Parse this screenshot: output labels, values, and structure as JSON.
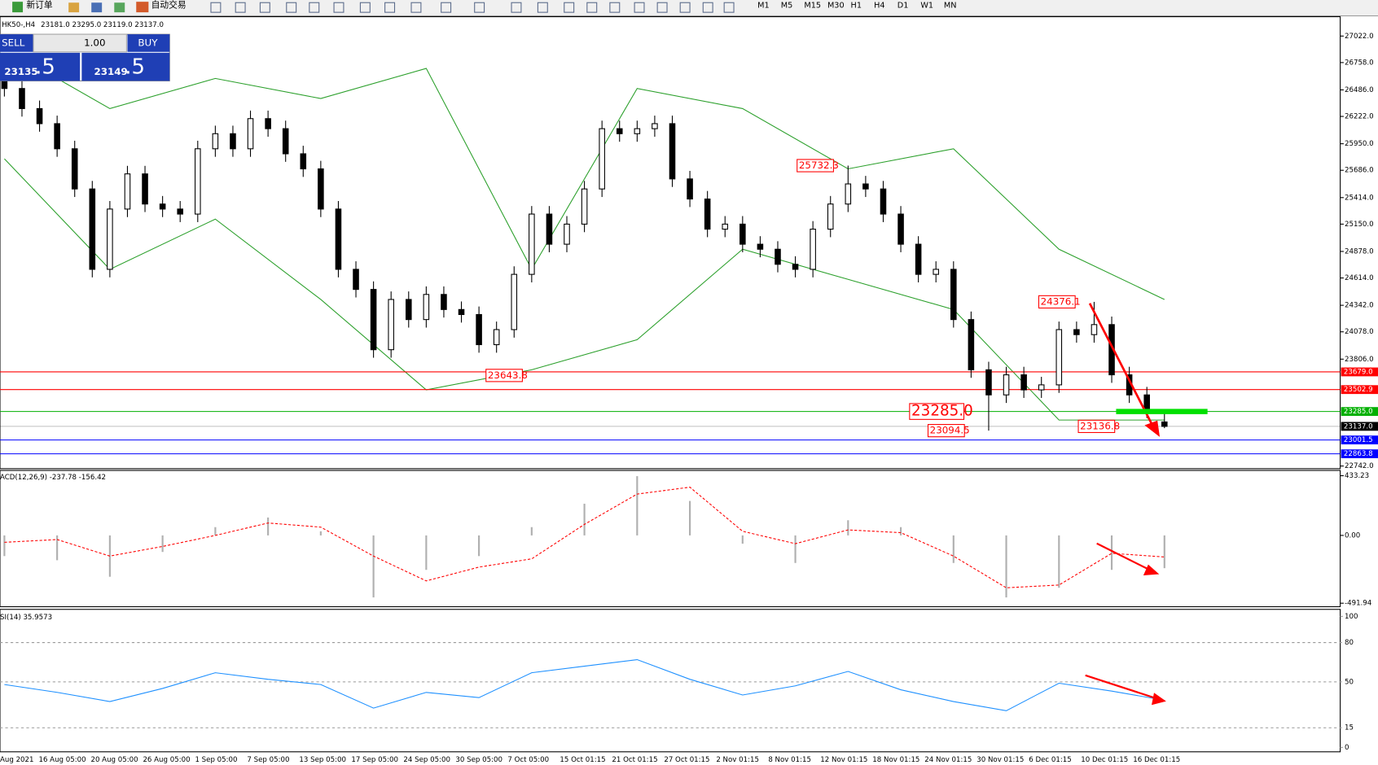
{
  "toolbar": {
    "new_order": "新订单",
    "auto_trading": "自动交易",
    "timeframes": [
      "M1",
      "M5",
      "M15",
      "M30",
      "H1",
      "H4",
      "D1",
      "W1",
      "MN"
    ]
  },
  "chart_header": {
    "symbol": "HK50-,H4",
    "open": "23181.0",
    "high": "23295.0",
    "low": "23119.0",
    "close": "23137.0"
  },
  "one_click": {
    "sell": "SELL",
    "volume": "1.00",
    "buy": "BUY",
    "bid_main": "23135",
    "bid_frac": ".5",
    "ask_main": "23149",
    "ask_frac": ".5"
  },
  "chart_data": {
    "type": "candlestick",
    "open": [
      26600,
      26500,
      26300,
      26150,
      25900,
      25500,
      24700,
      25300,
      25650,
      25350,
      25300,
      25250,
      25900,
      26050,
      25900,
      26200,
      26100,
      25850,
      25700,
      25300,
      24700,
      24500,
      23900,
      24400,
      24200,
      24450,
      24300,
      24250,
      23950,
      24100,
      24650,
      25250,
      24950,
      25150,
      25500,
      26100,
      26050,
      26100,
      26150,
      25600,
      25400,
      25100,
      25150,
      24950,
      24900,
      24750,
      24700,
      25100,
      25350,
      25550,
      25500,
      25250,
      24950,
      24650,
      24700,
      24200,
      23700,
      23450,
      23650,
      23500,
      23550,
      24100,
      24050,
      24150,
      23650,
      23450,
      23181
    ],
    "high": [
      26680,
      26580,
      26380,
      26230,
      25980,
      25580,
      25380,
      25730,
      25730,
      25430,
      25380,
      25980,
      26130,
      26130,
      26280,
      26280,
      26180,
      25930,
      25780,
      25380,
      24780,
      24580,
      24480,
      24480,
      24530,
      24530,
      24380,
      24330,
      24180,
      24730,
      25330,
      25330,
      25230,
      25580,
      26180,
      26180,
      26180,
      26230,
      26230,
      25680,
      25480,
      25230,
      25230,
      25030,
      24980,
      24830,
      25180,
      25430,
      25732.3,
      25630,
      25580,
      25330,
      25030,
      24780,
      24780,
      24280,
      23780,
      23730,
      23730,
      23630,
      24180,
      24180,
      24376.1,
      24230,
      23730,
      23530,
      23295
    ],
    "low": [
      26420,
      26220,
      26070,
      25820,
      25420,
      24620,
      24620,
      25220,
      25270,
      25220,
      25170,
      25170,
      25820,
      25820,
      25820,
      26020,
      25770,
      25620,
      25220,
      24620,
      24420,
      23820,
      23820,
      24120,
      24120,
      24220,
      24170,
      23870,
      23870,
      24020,
      24570,
      24870,
      24870,
      25070,
      25420,
      25970,
      25970,
      26020,
      25520,
      25320,
      25020,
      25020,
      24870,
      24820,
      24670,
      24620,
      24620,
      25020,
      25270,
      25420,
      25170,
      24870,
      24570,
      24570,
      24120,
      23620,
      23094.5,
      23370,
      23420,
      23420,
      23470,
      23970,
      23970,
      23570,
      23370,
      23220,
      23119
    ],
    "close": [
      26500,
      26300,
      26150,
      25900,
      25500,
      24700,
      25300,
      25650,
      25350,
      25300,
      25250,
      25900,
      26050,
      25900,
      26200,
      26100,
      25850,
      25700,
      25300,
      24700,
      24500,
      23900,
      24400,
      24200,
      24450,
      24300,
      24250,
      23950,
      24100,
      24650,
      25250,
      24950,
      25150,
      25500,
      26100,
      26050,
      26100,
      26150,
      25600,
      25400,
      25100,
      25150,
      24950,
      24900,
      24750,
      24700,
      25100,
      25350,
      25550,
      25500,
      25250,
      24950,
      24650,
      24700,
      24200,
      23700,
      23450,
      23650,
      23500,
      23550,
      24100,
      24050,
      24150,
      23650,
      23450,
      23300,
      23137
    ],
    "yticks": [
      {
        "value": 27022,
        "label": "27022.0"
      },
      {
        "value": 26758,
        "label": "26758.0"
      },
      {
        "value": 26486,
        "label": "26486.0"
      },
      {
        "value": 26222,
        "label": "26222.0"
      },
      {
        "value": 25950,
        "label": "25950.0"
      },
      {
        "value": 25686,
        "label": "25686.0"
      },
      {
        "value": 25414,
        "label": "25414.0"
      },
      {
        "value": 25150,
        "label": "25150.0"
      },
      {
        "value": 24878,
        "label": "24878.0"
      },
      {
        "value": 24614,
        "label": "24614.0"
      },
      {
        "value": 24342,
        "label": "24342.0"
      },
      {
        "value": 24078,
        "label": "24078.0"
      },
      {
        "value": 23806,
        "label": "23806.0"
      },
      {
        "value": 22742,
        "label": "22742.0"
      }
    ],
    "bands": {
      "color": "#2ca02c",
      "x": [
        0,
        6,
        12,
        18,
        24,
        30,
        36,
        42,
        48,
        54,
        60,
        66
      ],
      "upper": [
        26900,
        26300,
        26600,
        26400,
        26700,
        24700,
        26500,
        26300,
        25700,
        25900,
        24900,
        24400
      ],
      "lower": [
        25800,
        24700,
        25200,
        24400,
        23500,
        23700,
        24000,
        24900,
        24600,
        24300,
        23200,
        23200
      ]
    },
    "levels": [
      {
        "value": 23679.0,
        "label": "23679.0",
        "color": "#ff0000"
      },
      {
        "value": 23502.9,
        "label": "23502.9",
        "color": "#ff0000"
      },
      {
        "value": 23285.0,
        "label": "23285.0",
        "color": "#00b000"
      },
      {
        "value": 23137.0,
        "label": "23137.0",
        "color": "#000000"
      },
      {
        "value": 23001.5,
        "label": "23001.5",
        "color": "#0000ff"
      },
      {
        "value": 22863.8,
        "label": "22863.8",
        "color": "#0000ff"
      }
    ],
    "annotations": [
      {
        "value": 23643.8,
        "label": "23643.8"
      },
      {
        "value": 25732.3,
        "label": "25732.3"
      },
      {
        "value": 24376.1,
        "label": "24376.1"
      },
      {
        "value": 23285.0,
        "label": "23285.0"
      },
      {
        "value": 23094.5,
        "label": "23094.5"
      },
      {
        "value": 23136.8,
        "label": "23136.8"
      }
    ],
    "x_labels": [
      "Aug 2021",
      "16 Aug 05:00",
      "20 Aug 05:00",
      "26 Aug 05:00",
      "1 Sep 05:00",
      "7 Sep 05:00",
      "13 Sep 05:00",
      "17 Sep 05:00",
      "24 Sep 05:00",
      "30 Sep 05:00",
      "7 Oct 05:00",
      "15 Oct 01:15",
      "21 Oct 01:15",
      "27 Oct 01:15",
      "2 Nov 01:15",
      "8 Nov 01:15",
      "12 Nov 01:15",
      "18 Nov 01:15",
      "24 Nov 01:15",
      "30 Nov 01:15",
      "6 Dec 01:15",
      "10 Dec 01:15",
      "16 Dec 01:15"
    ]
  },
  "macd": {
    "label": "ACD(12,26,9) -237.78 -156.42",
    "x": [
      0,
      3,
      6,
      9,
      12,
      15,
      18,
      21,
      24,
      27,
      30,
      33,
      36,
      39,
      42,
      45,
      48,
      51,
      54,
      57,
      60,
      63,
      66
    ],
    "histogram": [
      -150,
      -180,
      -300,
      -120,
      60,
      130,
      30,
      -450,
      -250,
      -150,
      60,
      230,
      430,
      250,
      -60,
      -200,
      110,
      60,
      -200,
      -450,
      -380,
      -250,
      -237.78
    ],
    "signal": [
      -50,
      -30,
      -150,
      -80,
      0,
      90,
      60,
      -150,
      -330,
      -230,
      -170,
      80,
      300,
      350,
      30,
      -60,
      40,
      20,
      -150,
      -380,
      -360,
      -130,
      -156.42
    ],
    "yticks": [
      {
        "value": 433.23,
        "label": "433.23"
      },
      {
        "value": 0,
        "label": "0.00"
      },
      {
        "value": -491.94,
        "label": "-491.94"
      }
    ]
  },
  "rsi": {
    "label": "SI(14) 35.9573",
    "x": [
      0,
      3,
      6,
      9,
      12,
      15,
      18,
      21,
      24,
      27,
      30,
      33,
      36,
      39,
      42,
      45,
      48,
      51,
      54,
      57,
      60,
      63,
      66
    ],
    "values": [
      48,
      42,
      35,
      45,
      57,
      52,
      48,
      30,
      42,
      38,
      57,
      62,
      67,
      52,
      40,
      47,
      58,
      44,
      35,
      28,
      49,
      43,
      35.9573
    ],
    "yticks": [
      100,
      80,
      50,
      15,
      0
    ]
  }
}
